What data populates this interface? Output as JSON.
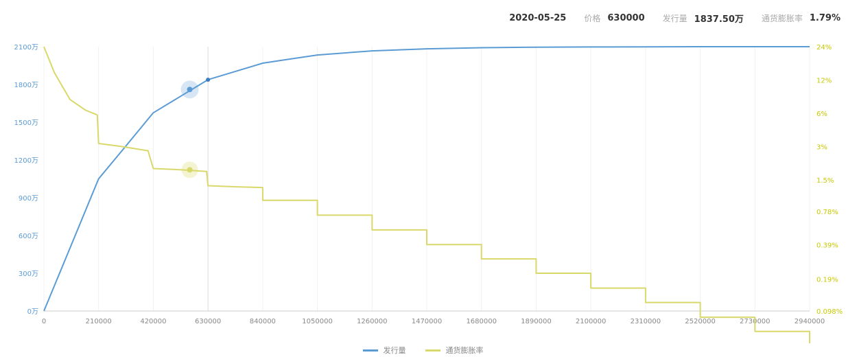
{
  "header": {
    "date": "2020-05-25",
    "x_label": "价格",
    "x_value": "630000",
    "y1_label": "发行量",
    "y1_value": "1837.50万",
    "y2_label": "通货膨胀率",
    "y2_value": "1.79%"
  },
  "legend": [
    {
      "name": "发行量",
      "color": "#5b9bd5"
    },
    {
      "name": "通货膨胀率",
      "color": "#d9d86a"
    }
  ],
  "chart_data": {
    "type": "line",
    "grid": true,
    "x_axis": {
      "min": 0,
      "max": 2940000,
      "ticks": [
        0,
        210000,
        420000,
        630000,
        840000,
        1050000,
        1260000,
        1470000,
        1680000,
        1890000,
        2100000,
        2310000,
        2520000,
        2730000,
        2940000
      ]
    },
    "y_left": {
      "min": 0,
      "max": 2100,
      "tick_labels": [
        "0万",
        "300万",
        "600万",
        "900万",
        "1200万",
        "1500万",
        "1800万",
        "2100万"
      ],
      "tick_values": [
        0,
        300,
        600,
        900,
        1200,
        1500,
        1800,
        2100
      ]
    },
    "y_right": {
      "scale": "log",
      "tick_labels": [
        "0.098%",
        "0.19%",
        "0.39%",
        "0.78%",
        "1.5%",
        "3%",
        "6%",
        "12%",
        "24%"
      ],
      "tick_values": [
        0.098,
        0.19,
        0.39,
        0.78,
        1.5,
        3,
        6,
        12,
        24
      ]
    },
    "series": [
      {
        "name": "发行量",
        "axis": "left",
        "color": "#5b9bd5",
        "points": [
          [
            0,
            0
          ],
          [
            105000,
            525
          ],
          [
            210000,
            1050
          ],
          [
            315000,
            1312
          ],
          [
            420000,
            1575
          ],
          [
            525000,
            1706
          ],
          [
            630000,
            1837.5
          ],
          [
            735000,
            1903
          ],
          [
            840000,
            1969
          ],
          [
            945000,
            2002
          ],
          [
            1050000,
            2034
          ],
          [
            1260000,
            2067
          ],
          [
            1470000,
            2083
          ],
          [
            1680000,
            2092
          ],
          [
            1890000,
            2096
          ],
          [
            2100000,
            2098
          ],
          [
            2310000,
            2099
          ],
          [
            2520000,
            2100
          ],
          [
            2730000,
            2100
          ],
          [
            2940000,
            2100
          ]
        ]
      },
      {
        "name": "通货膨胀率",
        "axis": "right",
        "color": "#d9d86a",
        "points": [
          [
            0,
            24
          ],
          [
            40000,
            14
          ],
          [
            100000,
            8
          ],
          [
            160000,
            6.4
          ],
          [
            205000,
            5.8
          ],
          [
            210000,
            3.2
          ],
          [
            300000,
            3.0
          ],
          [
            400000,
            2.75
          ],
          [
            420000,
            1.9
          ],
          [
            530000,
            1.85
          ],
          [
            625000,
            1.79
          ],
          [
            630000,
            1.33
          ],
          [
            740000,
            1.3
          ],
          [
            840000,
            1.28
          ],
          [
            840000,
            0.98
          ],
          [
            1050000,
            0.98
          ],
          [
            1050000,
            0.72
          ],
          [
            1260000,
            0.72
          ],
          [
            1260000,
            0.53
          ],
          [
            1470000,
            0.53
          ],
          [
            1470000,
            0.39
          ],
          [
            1680000,
            0.39
          ],
          [
            1680000,
            0.29
          ],
          [
            1890000,
            0.29
          ],
          [
            1890000,
            0.215
          ],
          [
            2100000,
            0.215
          ],
          [
            2100000,
            0.158
          ],
          [
            2310000,
            0.158
          ],
          [
            2310000,
            0.117
          ],
          [
            2520000,
            0.117
          ],
          [
            2520000,
            0.086
          ],
          [
            2730000,
            0.086
          ],
          [
            2730000,
            0.064
          ],
          [
            2940000,
            0.064
          ],
          [
            2940000,
            0.05
          ]
        ]
      }
    ],
    "crosshair": {
      "x": 630000,
      "y1": 1837.5,
      "y2": 1.79
    }
  }
}
